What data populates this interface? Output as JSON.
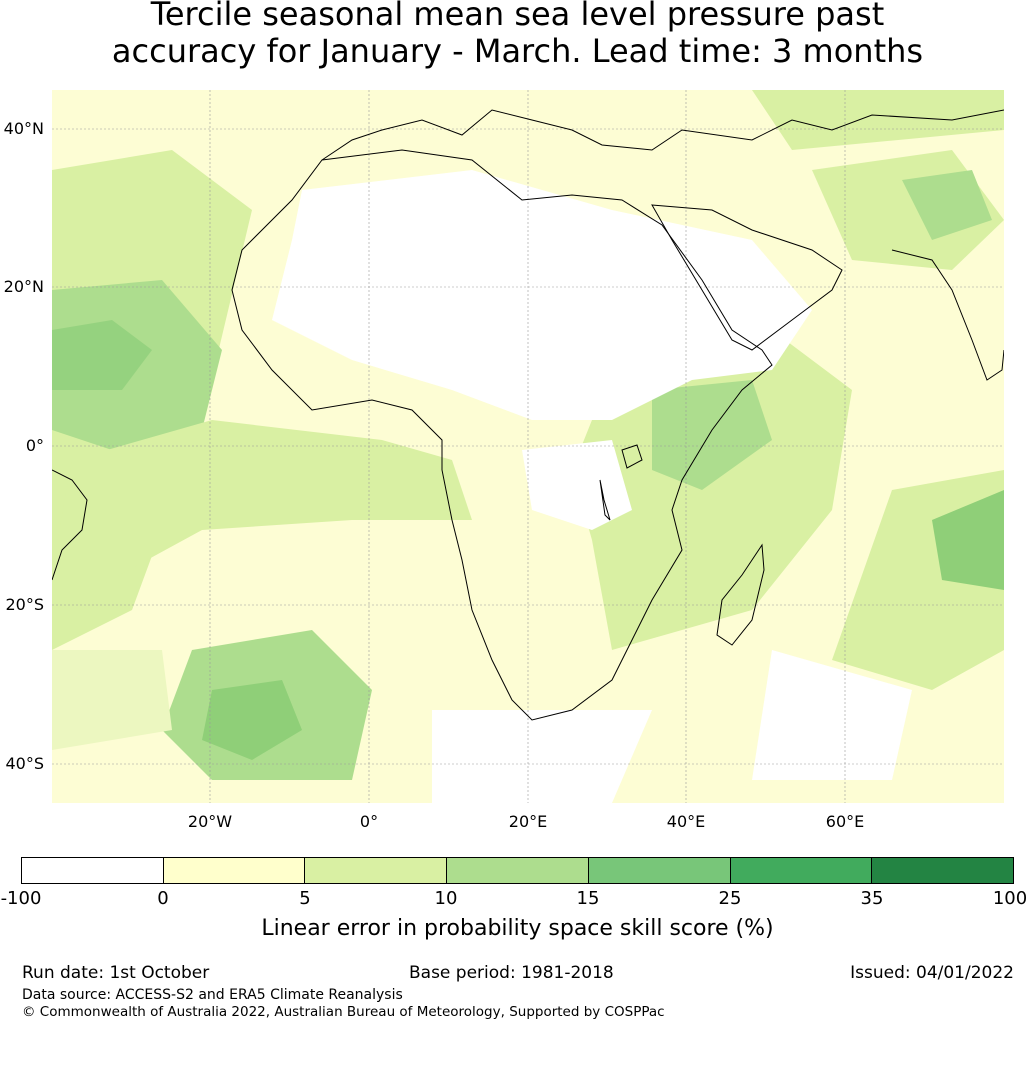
{
  "title": {
    "line1": "Tercile seasonal mean sea level pressure past",
    "line2": "accuracy for January - March. Lead time: 3 months"
  },
  "map": {
    "region": "Africa",
    "lat_labels": [
      "40°N",
      "20°N",
      "0°",
      "20°S",
      "40°S"
    ],
    "lon_labels": [
      "20°W",
      "0°",
      "20°E",
      "40°E",
      "60°E"
    ],
    "lat_range": [
      -45,
      45
    ],
    "lon_range": [
      -40,
      80
    ],
    "gridlines": true
  },
  "colorbar": {
    "ticks": [
      "-100",
      "0",
      "5",
      "10",
      "15",
      "25",
      "35",
      "100"
    ],
    "colors": [
      "#ffffff",
      "#ffffcc",
      "#d9f0a3",
      "#addd8e",
      "#78c679",
      "#41ab5d",
      "#238443"
    ],
    "label": "Linear error in probability space skill score (%)"
  },
  "footer": {
    "run_date": "Run date: 1st October",
    "base_period": "Base period: 1981-2018",
    "issued": "Issued: 04/01/2022",
    "data_source": "Data source: ACCESS-S2 and ERA5 Climate Reanalysis",
    "copyright": "© Commonwealth of Australia 2022, Australian Bureau of Meteorology, Supported by COSPPac"
  }
}
